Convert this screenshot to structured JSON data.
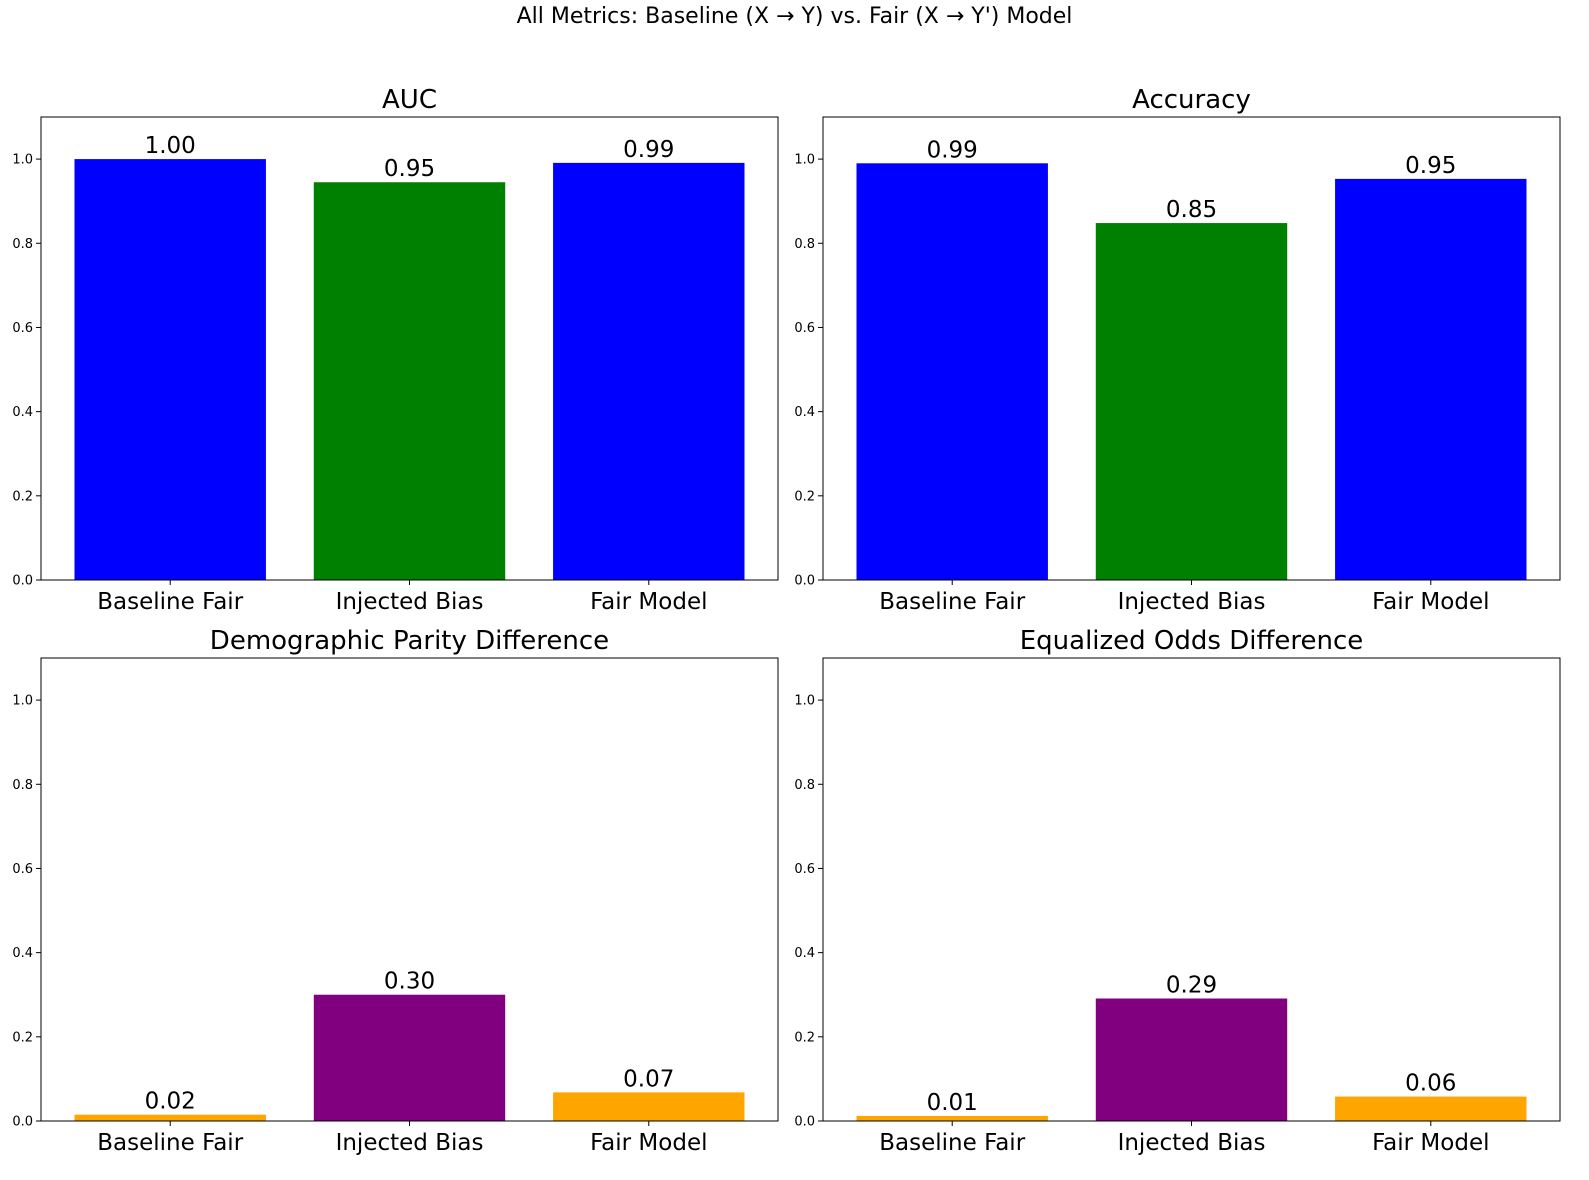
{
  "figure_title": "All Metrics: Baseline (X → Y) vs. Fair (X → Y') Model",
  "chart_data": [
    {
      "type": "bar",
      "title": "AUC",
      "categories": [
        "Baseline Fair",
        "Injected Bias",
        "Fair Model"
      ],
      "values": [
        1.0,
        0.945,
        0.991
      ],
      "value_labels": [
        "1.00",
        "0.95",
        "0.99"
      ],
      "colors": [
        "#0000ff",
        "#008000",
        "#0000ff"
      ],
      "ylim": [
        0,
        1.1
      ],
      "yticks": [
        0.0,
        0.2,
        0.4,
        0.6,
        0.8,
        1.0
      ],
      "ytick_labels": [
        "0.0",
        "0.2",
        "0.4",
        "0.6",
        "0.8",
        "1.0"
      ],
      "grid": false
    },
    {
      "type": "bar",
      "title": "Accuracy",
      "categories": [
        "Baseline Fair",
        "Injected Bias",
        "Fair Model"
      ],
      "values": [
        0.99,
        0.848,
        0.953
      ],
      "value_labels": [
        "0.99",
        "0.85",
        "0.95"
      ],
      "colors": [
        "#0000ff",
        "#008000",
        "#0000ff"
      ],
      "ylim": [
        0,
        1.1
      ],
      "yticks": [
        0.0,
        0.2,
        0.4,
        0.6,
        0.8,
        1.0
      ],
      "ytick_labels": [
        "0.0",
        "0.2",
        "0.4",
        "0.6",
        "0.8",
        "1.0"
      ],
      "grid": false
    },
    {
      "type": "bar",
      "title": "Demographic Parity Difference",
      "categories": [
        "Baseline Fair",
        "Injected Bias",
        "Fair Model"
      ],
      "values": [
        0.015,
        0.3,
        0.068
      ],
      "value_labels": [
        "0.02",
        "0.30",
        "0.07"
      ],
      "colors": [
        "#ffa500",
        "#800080",
        "#ffa500"
      ],
      "ylim": [
        0,
        1.1
      ],
      "yticks": [
        0.0,
        0.2,
        0.4,
        0.6,
        0.8,
        1.0
      ],
      "ytick_labels": [
        "0.0",
        "0.2",
        "0.4",
        "0.6",
        "0.8",
        "1.0"
      ],
      "grid": false
    },
    {
      "type": "bar",
      "title": "Equalized Odds Difference",
      "categories": [
        "Baseline Fair",
        "Injected Bias",
        "Fair Model"
      ],
      "values": [
        0.012,
        0.291,
        0.058
      ],
      "value_labels": [
        "0.01",
        "0.29",
        "0.06"
      ],
      "colors": [
        "#ffa500",
        "#800080",
        "#ffa500"
      ],
      "ylim": [
        0,
        1.1
      ],
      "yticks": [
        0.0,
        0.2,
        0.4,
        0.6,
        0.8,
        1.0
      ],
      "ytick_labels": [
        "0.0",
        "0.2",
        "0.4",
        "0.6",
        "0.8",
        "1.0"
      ],
      "grid": false
    }
  ]
}
